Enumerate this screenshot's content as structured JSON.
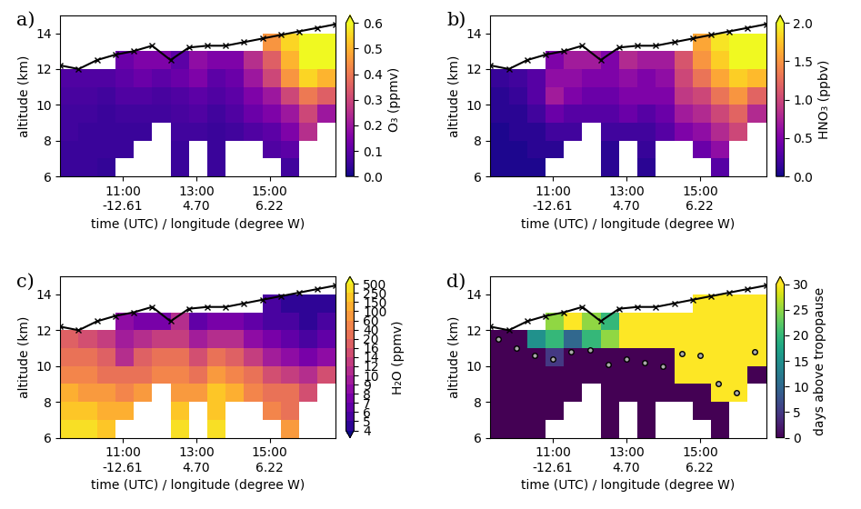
{
  "chart_data": [
    {
      "type": "heatmap",
      "panel_label": "a)",
      "color": "plasma",
      "xlabel": "time (UTC) / longitude (degree W)",
      "ylabel": "altitude (km)",
      "xlim": [
        9.3,
        16.8
      ],
      "ylim": [
        6,
        15
      ],
      "xticks": [
        {
          "value": 11,
          "label": "11:00\n-12.61"
        },
        {
          "value": 13,
          "label": "13:00\n4.70"
        },
        {
          "value": 15,
          "label": "15:00\n6.22"
        }
      ],
      "yticks": [
        6,
        8,
        10,
        12,
        14
      ],
      "x_edges": [
        9.3,
        9.8,
        10.3,
        10.8,
        11.3,
        11.8,
        12.3,
        12.8,
        13.3,
        13.8,
        14.3,
        14.8,
        15.3,
        15.8,
        16.3,
        16.8
      ],
      "y_edges": [
        6,
        7,
        8,
        9,
        10,
        11,
        12,
        13,
        14,
        15
      ],
      "cells": [
        [
          0.05,
          0.05,
          0.04,
          null,
          null,
          null,
          0.05,
          null,
          0.05,
          null,
          null,
          null,
          0.06,
          null,
          null
        ],
        [
          0.05,
          0.05,
          0.05,
          0.05,
          null,
          null,
          0.05,
          null,
          0.05,
          null,
          null,
          0.08,
          0.1,
          null,
          null
        ],
        [
          0.06,
          0.05,
          0.05,
          0.05,
          0.05,
          null,
          0.06,
          0.06,
          0.05,
          0.06,
          0.08,
          0.1,
          0.15,
          0.25,
          null
        ],
        [
          0.06,
          0.06,
          0.05,
          0.06,
          0.06,
          0.06,
          0.07,
          0.08,
          0.06,
          0.08,
          0.12,
          0.15,
          0.2,
          0.3,
          0.2
        ],
        [
          0.07,
          0.07,
          0.06,
          0.08,
          0.08,
          0.07,
          0.08,
          0.1,
          0.08,
          0.1,
          0.15,
          0.2,
          0.3,
          0.4,
          0.35
        ],
        [
          0.08,
          0.08,
          0.08,
          0.1,
          0.12,
          0.1,
          0.12,
          0.15,
          0.1,
          0.12,
          0.2,
          0.3,
          0.45,
          0.55,
          0.5
        ],
        [
          null,
          null,
          null,
          0.12,
          0.15,
          0.15,
          0.1,
          0.18,
          0.15,
          0.15,
          0.25,
          0.35,
          0.5,
          0.6,
          0.6
        ],
        [
          null,
          null,
          null,
          null,
          null,
          null,
          null,
          null,
          null,
          null,
          null,
          0.45,
          0.55,
          0.6,
          0.6
        ],
        [
          null,
          null,
          null,
          null,
          null,
          null,
          null,
          null,
          null,
          null,
          null,
          null,
          null,
          null,
          null
        ]
      ],
      "colorbar": {
        "label": "O₃ (ppmv)",
        "range": [
          0,
          0.6
        ],
        "ticks": [
          {
            "value": 0,
            "label": "0.0"
          },
          0.1,
          0.2,
          0.3,
          0.4,
          0.5,
          0.6
        ]
      },
      "flight_altitude": {
        "x": [
          9.3,
          9.8,
          10.3,
          10.8,
          11.3,
          11.8,
          12.3,
          12.8,
          13.3,
          13.8,
          14.3,
          14.8,
          15.3,
          15.8,
          16.3,
          16.8
        ],
        "y": [
          12.2,
          12.0,
          12.5,
          12.8,
          13.0,
          13.3,
          12.5,
          13.2,
          13.3,
          13.3,
          13.5,
          13.7,
          13.9,
          14.1,
          14.3,
          14.5
        ]
      }
    },
    {
      "type": "heatmap",
      "panel_label": "b)",
      "color": "plasma",
      "xlabel": "time (UTC) / longitude (degree W)",
      "ylabel": "altitude (km)",
      "xlim": [
        9.3,
        16.8
      ],
      "ylim": [
        6,
        15
      ],
      "xticks": [
        {
          "value": 11,
          "label": "11:00\n-12.61"
        },
        {
          "value": 13,
          "label": "13:00\n4.70"
        },
        {
          "value": 15,
          "label": "15:00\n6.22"
        }
      ],
      "yticks": [
        6,
        8,
        10,
        12,
        14
      ],
      "x_edges": [
        9.3,
        9.8,
        10.3,
        10.8,
        11.3,
        11.8,
        12.3,
        12.8,
        13.3,
        13.8,
        14.3,
        14.8,
        15.3,
        15.8,
        16.3,
        16.8
      ],
      "y_edges": [
        6,
        7,
        8,
        9,
        10,
        11,
        12,
        13,
        14,
        15
      ],
      "cells": [
        [
          0.05,
          0.05,
          0.05,
          null,
          null,
          null,
          0.1,
          null,
          0.1,
          null,
          null,
          null,
          0.3,
          null,
          null
        ],
        [
          0.05,
          0.05,
          0.1,
          0.1,
          null,
          null,
          0.1,
          null,
          0.15,
          null,
          null,
          0.4,
          0.6,
          null,
          null
        ],
        [
          0.05,
          0.1,
          0.1,
          0.2,
          0.2,
          null,
          0.2,
          0.2,
          0.2,
          0.3,
          0.5,
          0.6,
          0.8,
          1.0,
          null
        ],
        [
          0.1,
          0.1,
          0.2,
          0.4,
          0.3,
          0.3,
          0.3,
          0.4,
          0.3,
          0.4,
          0.7,
          0.8,
          1.0,
          1.2,
          0.8
        ],
        [
          0.1,
          0.15,
          0.3,
          0.7,
          0.5,
          0.4,
          0.4,
          0.5,
          0.5,
          0.5,
          0.9,
          1.0,
          1.3,
          1.5,
          1.2
        ],
        [
          0.15,
          0.2,
          0.3,
          0.6,
          0.6,
          0.5,
          0.5,
          0.6,
          0.5,
          0.6,
          1.0,
          1.3,
          1.6,
          1.8,
          1.7
        ],
        [
          null,
          null,
          null,
          0.5,
          0.7,
          0.7,
          0.5,
          0.8,
          0.7,
          0.7,
          1.1,
          1.5,
          1.8,
          2.0,
          2.0
        ],
        [
          null,
          null,
          null,
          null,
          null,
          null,
          null,
          null,
          null,
          null,
          null,
          1.6,
          1.9,
          2.0,
          2.0
        ],
        [
          null,
          null,
          null,
          null,
          null,
          null,
          null,
          null,
          null,
          null,
          null,
          null,
          null,
          null,
          null
        ]
      ],
      "colorbar": {
        "label": "HNO₃ (ppbv)",
        "range": [
          0,
          2.0
        ],
        "ticks": [
          {
            "value": 0,
            "label": "0.0"
          },
          0.5,
          {
            "value": 1,
            "label": "1.0"
          },
          1.5,
          {
            "value": 2,
            "label": "2.0"
          }
        ]
      },
      "flight_altitude": {
        "x": [
          9.3,
          9.8,
          10.3,
          10.8,
          11.3,
          11.8,
          12.3,
          12.8,
          13.3,
          13.8,
          14.3,
          14.8,
          15.3,
          15.8,
          16.3,
          16.8
        ],
        "y": [
          12.2,
          12.0,
          12.5,
          12.8,
          13.0,
          13.3,
          12.5,
          13.2,
          13.3,
          13.3,
          13.5,
          13.7,
          13.9,
          14.1,
          14.3,
          14.5
        ]
      }
    },
    {
      "type": "heatmap",
      "panel_label": "c)",
      "color": "plasma",
      "xlabel": "time (UTC) / longitude (degree W)",
      "ylabel": "altitude (km)",
      "xlim": [
        9.3,
        16.8
      ],
      "ylim": [
        6,
        15
      ],
      "xticks": [
        {
          "value": 11,
          "label": "11:00\n-12.61"
        },
        {
          "value": 13,
          "label": "13:00\n4.70"
        },
        {
          "value": 15,
          "label": "15:00\n6.22"
        }
      ],
      "yticks": [
        6,
        8,
        10,
        12,
        14
      ],
      "x_edges": [
        9.3,
        9.8,
        10.3,
        10.8,
        11.3,
        11.8,
        12.3,
        12.8,
        13.3,
        13.8,
        14.3,
        14.8,
        15.3,
        15.8,
        16.3,
        16.8
      ],
      "y_edges": [
        6,
        7,
        8,
        9,
        10,
        11,
        12,
        13,
        14,
        15
      ],
      "cells": [
        [
          300,
          250,
          200,
          null,
          null,
          null,
          250,
          null,
          300,
          null,
          null,
          null,
          60,
          null,
          null
        ],
        [
          200,
          150,
          100,
          100,
          null,
          null,
          150,
          null,
          200,
          null,
          null,
          40,
          30,
          null,
          null
        ],
        [
          100,
          80,
          60,
          50,
          60,
          null,
          80,
          60,
          150,
          100,
          40,
          25,
          20,
          15,
          null
        ],
        [
          50,
          40,
          30,
          20,
          30,
          40,
          40,
          30,
          60,
          40,
          20,
          14,
          12,
          10,
          14
        ],
        [
          30,
          25,
          16,
          10,
          16,
          20,
          20,
          14,
          20,
          16,
          12,
          9,
          8,
          7,
          8
        ],
        [
          16,
          14,
          12,
          9,
          10,
          12,
          12,
          9,
          10,
          10,
          8,
          7,
          6,
          5,
          6
        ],
        [
          null,
          null,
          null,
          8,
          7,
          7,
          10,
          6,
          7,
          7,
          6,
          5,
          5,
          4.5,
          5
        ],
        [
          null,
          null,
          null,
          null,
          null,
          null,
          null,
          null,
          null,
          null,
          null,
          5,
          4.5,
          4.5,
          4.5
        ],
        [
          null,
          null,
          null,
          null,
          null,
          null,
          null,
          null,
          null,
          null,
          null,
          null,
          null,
          null,
          null
        ]
      ],
      "colorbar": {
        "label": "H₂O (ppmv)",
        "range": [
          4,
          500
        ],
        "ticks": [
          4,
          5,
          6,
          7,
          8,
          9,
          10,
          12,
          14,
          16,
          20,
          40,
          60,
          100,
          150,
          250,
          500
        ]
      },
      "flight_altitude": {
        "x": [
          9.3,
          9.8,
          10.3,
          10.8,
          11.3,
          11.8,
          12.3,
          12.8,
          13.3,
          13.8,
          14.3,
          14.8,
          15.3,
          15.8,
          16.3,
          16.8
        ],
        "y": [
          12.2,
          12.0,
          12.5,
          12.8,
          13.0,
          13.3,
          12.5,
          13.2,
          13.3,
          13.3,
          13.5,
          13.7,
          13.9,
          14.1,
          14.3,
          14.5
        ]
      }
    },
    {
      "type": "heatmap",
      "panel_label": "d)",
      "color": "viridis",
      "xlabel": "time (UTC) / longitude (degree W)",
      "ylabel": "altitude (km)",
      "xlim": [
        9.3,
        16.8
      ],
      "ylim": [
        6,
        15
      ],
      "xticks": [
        {
          "value": 11,
          "label": "11:00\n-12.61"
        },
        {
          "value": 13,
          "label": "13:00\n4.70"
        },
        {
          "value": 15,
          "label": "15:00\n6.22"
        }
      ],
      "yticks": [
        6,
        8,
        10,
        12,
        14
      ],
      "x_edges": [
        9.3,
        9.8,
        10.3,
        10.8,
        11.3,
        11.8,
        12.3,
        12.8,
        13.3,
        13.8,
        14.3,
        14.8,
        15.3,
        15.8,
        16.3,
        16.8
      ],
      "y_edges": [
        6,
        7,
        8,
        9,
        10,
        11,
        12,
        13,
        14,
        15
      ],
      "cells": [
        [
          0,
          0,
          0,
          null,
          null,
          null,
          0,
          null,
          0,
          null,
          null,
          null,
          0,
          null,
          null
        ],
        [
          0,
          0,
          0,
          0,
          null,
          null,
          0,
          null,
          0,
          null,
          null,
          0,
          0,
          null,
          null
        ],
        [
          0,
          0,
          0,
          0,
          0,
          null,
          0,
          0,
          0,
          0,
          0,
          0,
          30,
          30,
          null
        ],
        [
          0,
          0,
          0,
          0,
          0,
          0,
          0,
          0,
          0,
          0,
          30,
          30,
          30,
          30,
          0
        ],
        [
          0,
          0,
          0,
          5,
          0,
          0,
          0,
          0,
          0,
          0,
          30,
          30,
          30,
          30,
          30
        ],
        [
          0,
          0,
          15,
          20,
          10,
          20,
          25,
          30,
          30,
          30,
          30,
          30,
          30,
          30,
          30
        ],
        [
          null,
          null,
          null,
          25,
          30,
          25,
          20,
          30,
          30,
          30,
          30,
          30,
          30,
          30,
          30
        ],
        [
          null,
          null,
          null,
          null,
          null,
          null,
          null,
          null,
          null,
          null,
          null,
          30,
          30,
          30,
          30
        ],
        [
          null,
          null,
          null,
          null,
          null,
          null,
          null,
          null,
          null,
          null,
          null,
          null,
          null,
          null,
          null
        ]
      ],
      "colorbar": {
        "label": "days above tropopause",
        "range": [
          0,
          30
        ],
        "ticks": [
          0,
          5,
          10,
          15,
          20,
          25,
          30
        ]
      },
      "flight_altitude": {
        "x": [
          9.3,
          9.8,
          10.3,
          10.8,
          11.3,
          11.8,
          12.3,
          12.8,
          13.3,
          13.8,
          14.3,
          14.8,
          15.3,
          15.8,
          16.3,
          16.8
        ],
        "y": [
          12.2,
          12.0,
          12.5,
          12.8,
          13.0,
          13.3,
          12.5,
          13.2,
          13.3,
          13.3,
          13.5,
          13.7,
          13.9,
          14.1,
          14.3,
          14.5
        ]
      },
      "tropopause": {
        "x": [
          9.5,
          10.0,
          10.5,
          11.0,
          11.5,
          12.0,
          12.5,
          13.0,
          13.5,
          14.0,
          14.5,
          15.0,
          15.5,
          16.0,
          16.5
        ],
        "y": [
          11.5,
          11.0,
          10.6,
          10.4,
          10.8,
          10.9,
          10.1,
          10.4,
          10.2,
          10.0,
          10.7,
          10.6,
          9.0,
          8.5,
          10.8
        ]
      }
    }
  ]
}
